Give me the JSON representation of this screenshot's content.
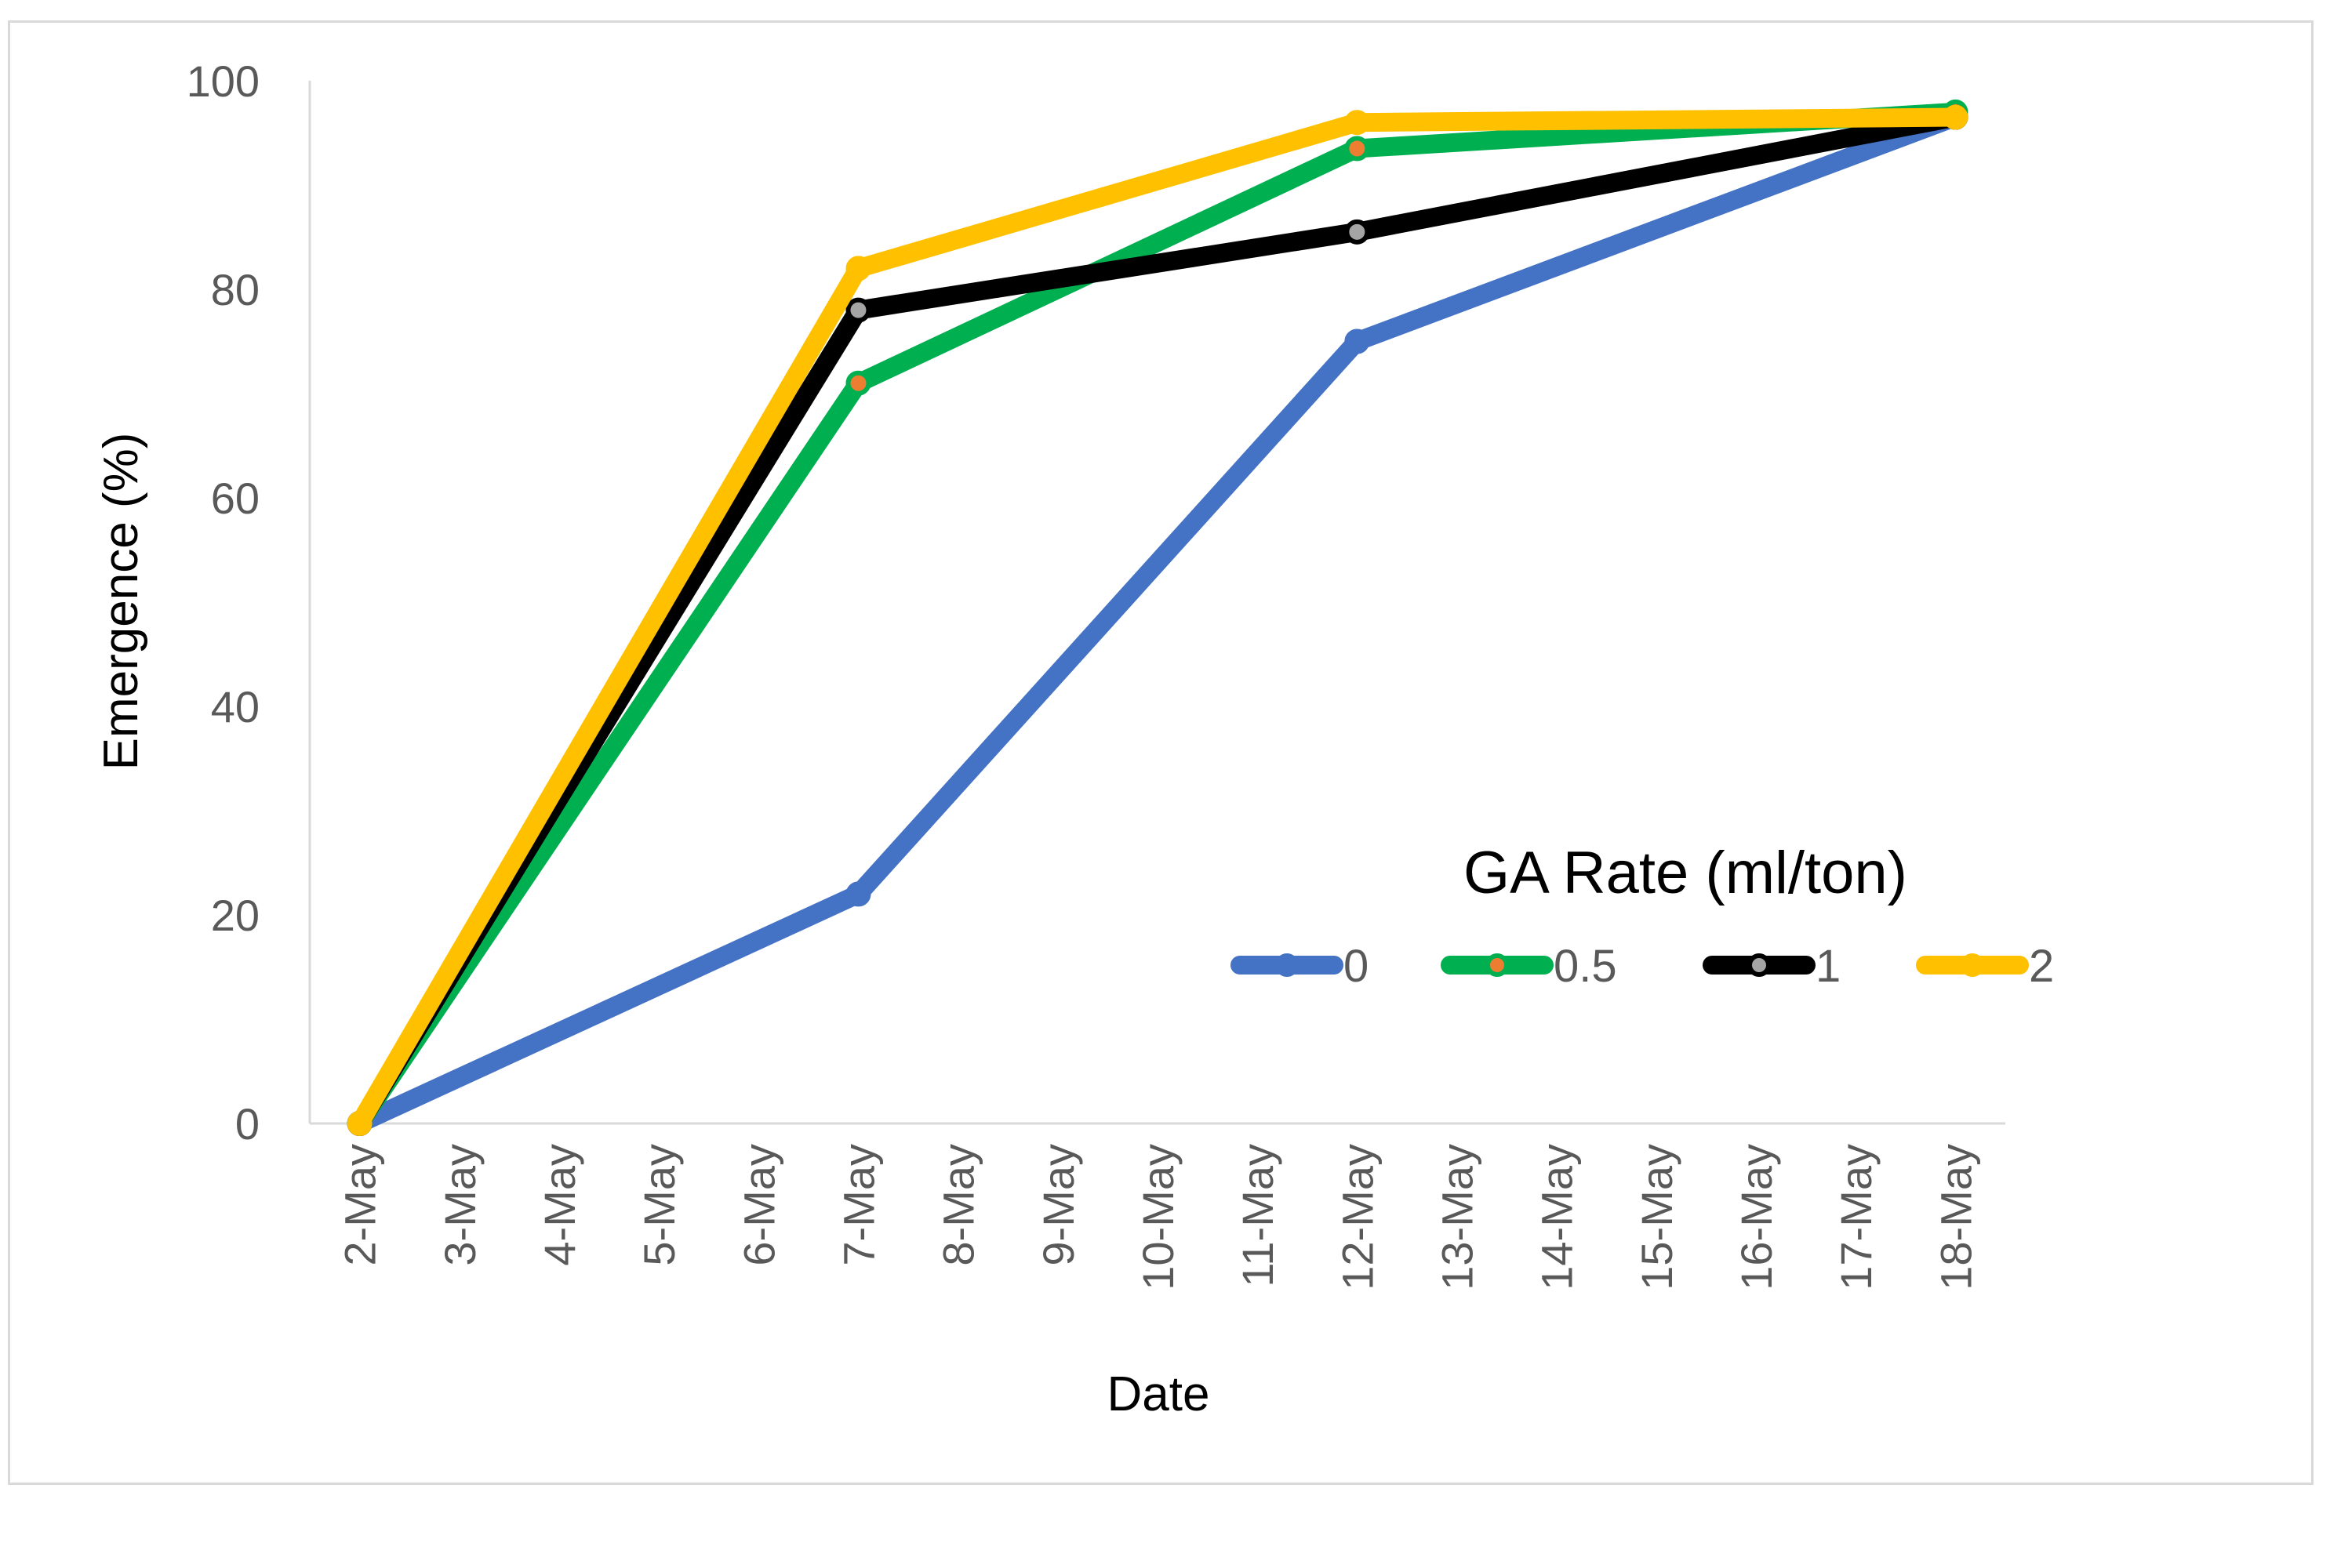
{
  "chart_data": {
    "type": "line",
    "xlabel": "Date",
    "ylabel": "Emergence (%)",
    "categories": [
      "2-May",
      "3-May",
      "4-May",
      "5-May",
      "6-May",
      "7-May",
      "8-May",
      "9-May",
      "10-May",
      "11-May",
      "12-May",
      "13-May",
      "14-May",
      "15-May",
      "16-May",
      "17-May",
      "18-May"
    ],
    "ylim": [
      0,
      100
    ],
    "yticks": [
      "0",
      "20",
      "40",
      "60",
      "80",
      "100"
    ],
    "grid": false,
    "legend": {
      "title": "GA Rate (ml/ton)",
      "placement": "center-right"
    },
    "series": [
      {
        "name": "0",
        "color": "#4472c4",
        "marker_fill": "#4472c4",
        "points": [
          [
            "2-May",
            0
          ],
          [
            "7-May",
            22
          ],
          [
            "12-May",
            75
          ],
          [
            "18-May",
            96.5
          ]
        ]
      },
      {
        "name": "0.5",
        "color": "#00b050",
        "marker_fill": "#ed7d31",
        "points": [
          [
            "2-May",
            0
          ],
          [
            "7-May",
            71
          ],
          [
            "12-May",
            93.5
          ],
          [
            "18-May",
            97
          ]
        ]
      },
      {
        "name": "1",
        "color": "#000000",
        "marker_fill": "#a5a5a5",
        "points": [
          [
            "2-May",
            0
          ],
          [
            "7-May",
            78
          ],
          [
            "12-May",
            85.5
          ],
          [
            "18-May",
            96.5
          ]
        ]
      },
      {
        "name": "2",
        "color": "#ffc000",
        "marker_fill": "#ffc000",
        "points": [
          [
            "2-May",
            0
          ],
          [
            "7-May",
            82
          ],
          [
            "12-May",
            96
          ],
          [
            "18-May",
            96.5
          ]
        ]
      }
    ]
  }
}
